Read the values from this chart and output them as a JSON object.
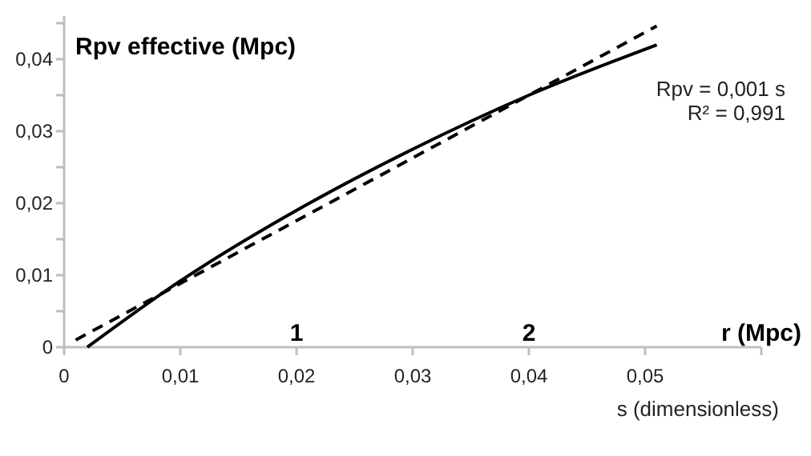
{
  "chart_data": {
    "type": "line",
    "ylabel": "Rpv effective (Mpc)",
    "xlabel": "s (dimensionless)",
    "x2label": "r (Mpc)",
    "xlim": [
      0,
      0.06
    ],
    "ylim": [
      0,
      0.046
    ],
    "x2lim": [
      0,
      3
    ],
    "xticks": [
      0,
      {
        "value": 0.01,
        "label": "0,01"
      },
      {
        "value": 0.02,
        "label": "0,02"
      },
      {
        "value": 0.03,
        "label": "0,03"
      },
      {
        "value": 0.04,
        "label": "0,04"
      },
      {
        "value": 0.05,
        "label": "0,05"
      },
      {
        "value": 0.06,
        "label": null
      }
    ],
    "yticks": [
      {
        "value": 0,
        "label": "0"
      },
      {
        "value": 0.005,
        "label": null
      },
      {
        "value": 0.01,
        "label": "0,01"
      },
      {
        "value": 0.015,
        "label": null
      },
      {
        "value": 0.02,
        "label": "0,02"
      },
      {
        "value": 0.025,
        "label": null
      },
      {
        "value": 0.03,
        "label": "0,03"
      },
      {
        "value": 0.035,
        "label": null
      },
      {
        "value": 0.04,
        "label": "0,04"
      },
      {
        "value": 0.045,
        "label": null
      }
    ],
    "x2ticks": [
      1,
      2
    ],
    "grid": false,
    "series": [
      {
        "color": "#000000",
        "line_style": "solid",
        "x": [
          0.002,
          0.01,
          0.02,
          0.03,
          0.04,
          0.051
        ],
        "values": [
          0,
          0.0092,
          0.019,
          0.0275,
          0.035,
          0.042
        ]
      },
      {
        "type": "line",
        "color": "#000000",
        "line_style": "dashed",
        "x": [
          0.001,
          0.051
        ],
        "values": [
          0.001,
          0.0446
        ]
      }
    ],
    "annotations": [
      "Rpv = 0,001 s",
      "R² = 0,991"
    ]
  }
}
